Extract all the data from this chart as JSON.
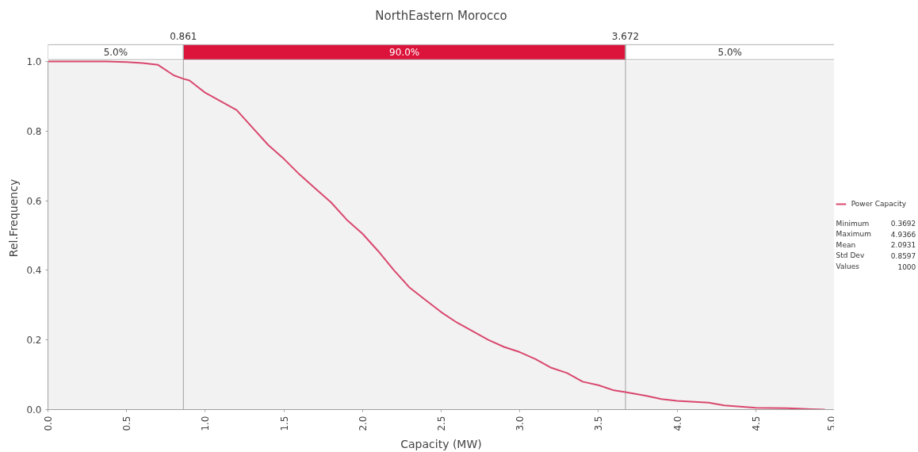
{
  "chart_data": {
    "type": "line",
    "title": "NorthEastern Morocco",
    "xlabel": "Capacity (MW)",
    "ylabel": "Rel.Frequency",
    "x": [
      0.0,
      0.37,
      0.5,
      0.6,
      0.7,
      0.8,
      0.861,
      0.9,
      1.0,
      1.1,
      1.2,
      1.3,
      1.4,
      1.5,
      1.6,
      1.7,
      1.8,
      1.9,
      2.0,
      2.1,
      2.2,
      2.3,
      2.4,
      2.5,
      2.6,
      2.7,
      2.8,
      2.9,
      3.0,
      3.1,
      3.2,
      3.3,
      3.4,
      3.5,
      3.6,
      3.672,
      3.8,
      3.9,
      4.0,
      4.2,
      4.3,
      4.5,
      4.7,
      4.85,
      4.94
    ],
    "series": [
      {
        "name": "Power Capacity",
        "color": "#d9486e",
        "values": [
          1.0,
          1.0,
          0.998,
          0.995,
          0.99,
          0.96,
          0.95,
          0.945,
          0.91,
          0.885,
          0.86,
          0.81,
          0.76,
          0.72,
          0.675,
          0.635,
          0.595,
          0.545,
          0.505,
          0.455,
          0.4,
          0.35,
          0.315,
          0.28,
          0.25,
          0.225,
          0.2,
          0.18,
          0.165,
          0.145,
          0.12,
          0.105,
          0.08,
          0.07,
          0.055,
          0.05,
          0.04,
          0.03,
          0.025,
          0.02,
          0.012,
          0.005,
          0.004,
          0.001,
          0.0
        ]
      }
    ],
    "xlim": [
      0,
      5
    ],
    "ylim": [
      0,
      1.0
    ],
    "xticks": [
      {
        "value": 0,
        "label": "0.0"
      },
      0.5,
      {
        "value": 1,
        "label": "1.0"
      },
      1.5,
      {
        "value": 2,
        "label": "2.0"
      },
      2.5,
      {
        "value": 3,
        "label": "3.0"
      },
      3.5,
      {
        "value": 4,
        "label": "4.0"
      },
      4.5,
      {
        "value": 5,
        "label": "5.0"
      }
    ],
    "yticks": [
      {
        "value": 0,
        "label": "0.0"
      },
      0.2,
      0.4,
      0.6,
      0.8,
      {
        "value": 1,
        "label": "1.0"
      }
    ],
    "ref_lines": [
      {
        "axis": "x",
        "value": 0.861,
        "label": "0.861",
        "color": "#a0a0a0"
      },
      {
        "axis": "x",
        "value": 3.672,
        "label": "3.672",
        "color": "#a0a0a0"
      }
    ],
    "annotations": [
      "5.0%",
      "90.0%",
      "5.0%",
      "Minimum 0.3692",
      "Maximum 4.9366",
      "Mean 2.0931",
      "Std Dev 0.8597",
      "Values 1000"
    ],
    "grid": true,
    "legend": "right",
    "marker": "none",
    "line_style": "solid"
  }
}
